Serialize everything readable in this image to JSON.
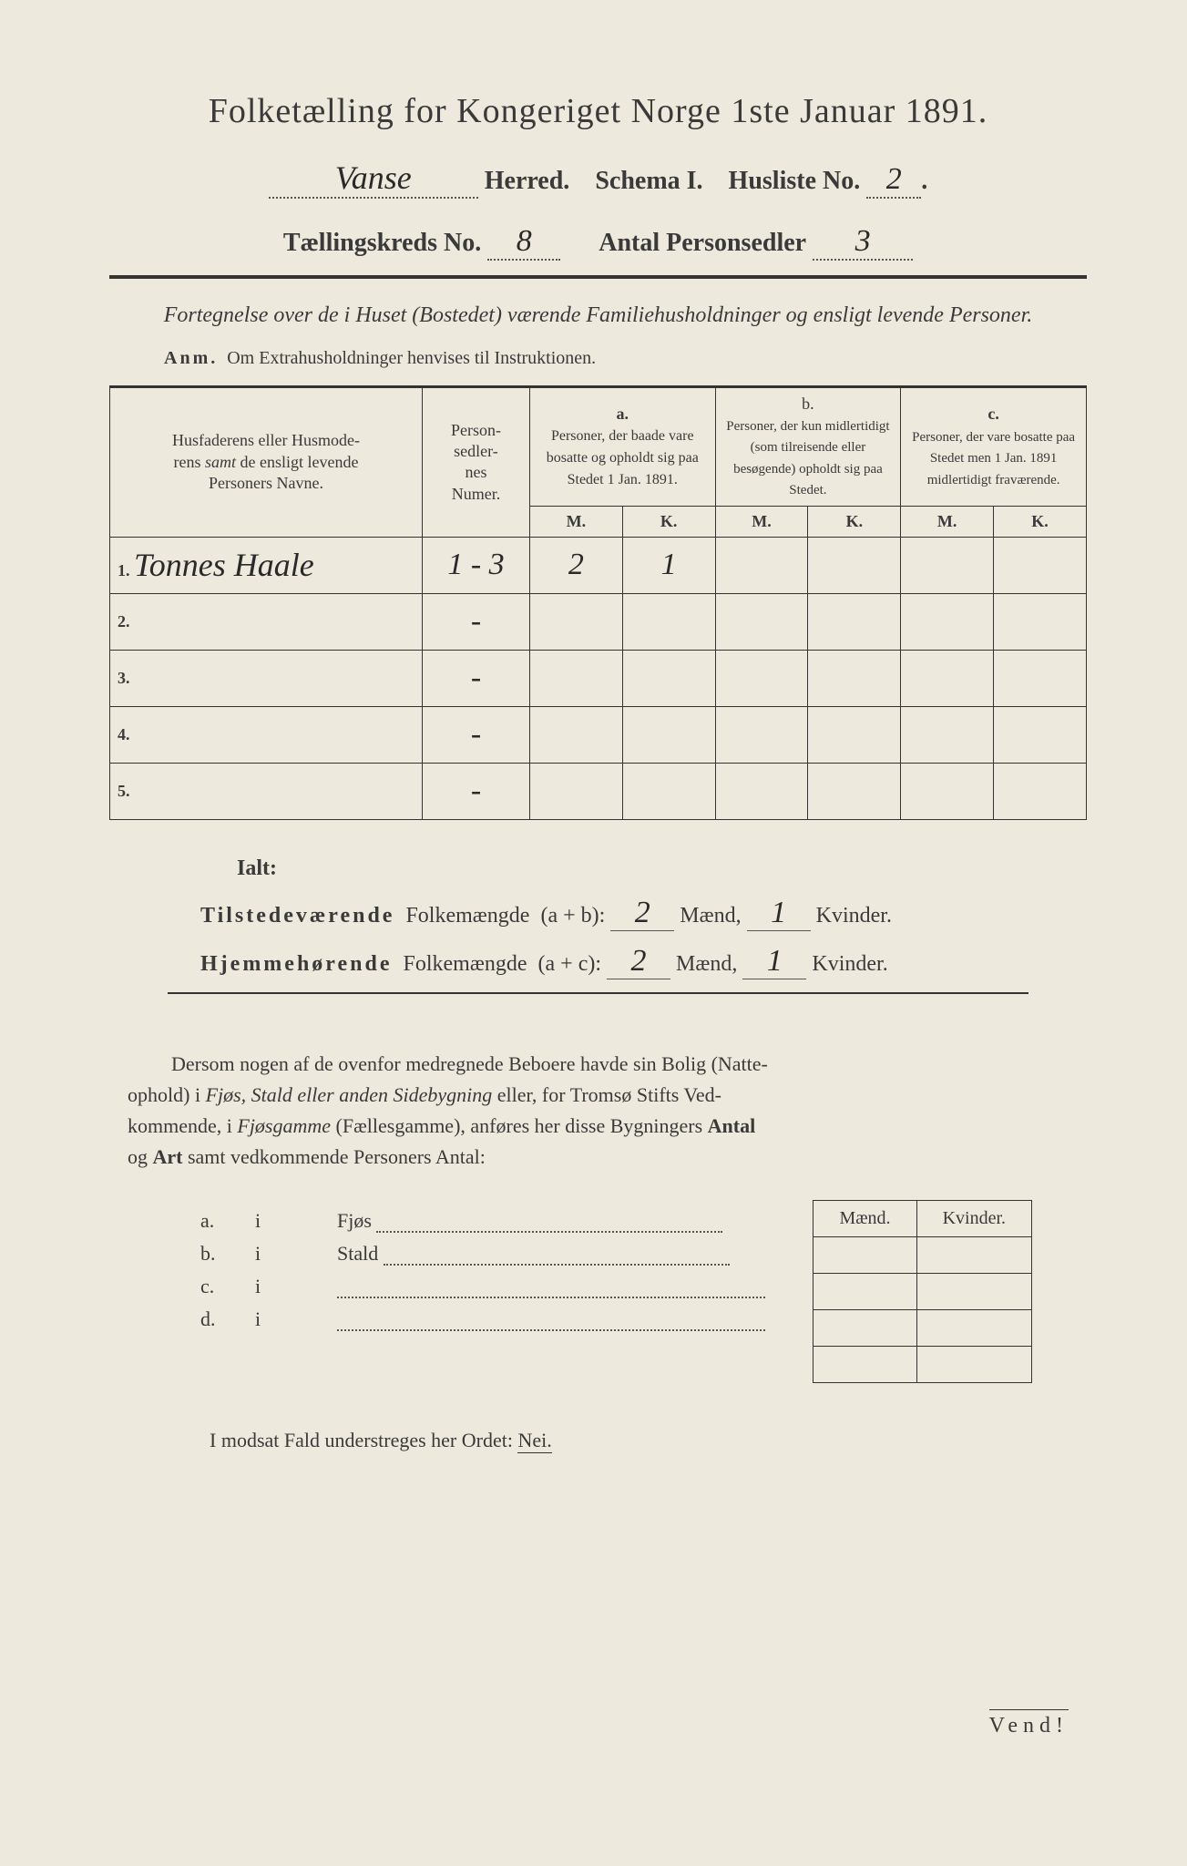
{
  "title": "Folketælling for Kongeriget Norge 1ste Januar 1891.",
  "line2": {
    "herred_value": "Vanse",
    "herred_label": "Herred.",
    "schema_label": "Schema I.",
    "husliste_label": "Husliste No.",
    "husliste_value": "2",
    "dot": "."
  },
  "line3": {
    "kreds_label": "Tællingskreds No.",
    "kreds_value": "8",
    "sedler_label": "Antal Personsedler",
    "sedler_value": "3"
  },
  "subtitle": "Fortegnelse over de i Huset (Bostedet) værende Familiehusholdninger og ensligt levende Personer.",
  "anm": {
    "label": "Anm.",
    "text": "Om Extrahusholdninger henvises til Instruktionen."
  },
  "headers": {
    "name": "Husfaderens eller Husmoderens samt de ensligt levende Personers Navne.",
    "numer": "Person-sedler-nes Numer.",
    "a_label": "a.",
    "a_text": "Personer, der baade vare bosatte og opholdt sig paa Stedet 1 Jan. 1891.",
    "b_label": "b.",
    "b_text": "Personer, der kun midlertidigt (som tilreisende eller besøgende) opholdt sig paa Stedet.",
    "c_label": "c.",
    "c_text": "Personer, der vare bosatte paa Stedet men 1 Jan. 1891 midlertidigt fraværende.",
    "m": "M.",
    "k": "K."
  },
  "rows": [
    {
      "n": "1.",
      "name": "Tonnes Haale",
      "numer": "1 - 3",
      "a_m": "2",
      "a_k": "1",
      "b_m": "",
      "b_k": "",
      "c_m": "",
      "c_k": ""
    },
    {
      "n": "2.",
      "name": "",
      "numer": "-",
      "a_m": "",
      "a_k": "",
      "b_m": "",
      "b_k": "",
      "c_m": "",
      "c_k": ""
    },
    {
      "n": "3.",
      "name": "",
      "numer": "-",
      "a_m": "",
      "a_k": "",
      "b_m": "",
      "b_k": "",
      "c_m": "",
      "c_k": ""
    },
    {
      "n": "4.",
      "name": "",
      "numer": "-",
      "a_m": "",
      "a_k": "",
      "b_m": "",
      "b_k": "",
      "c_m": "",
      "c_k": ""
    },
    {
      "n": "5.",
      "name": "",
      "numer": "-",
      "a_m": "",
      "a_k": "",
      "b_m": "",
      "b_k": "",
      "c_m": "",
      "c_k": ""
    }
  ],
  "summary": {
    "ialt": "Ialt:",
    "tilstede_label": "Tilstedeværende",
    "folkem": "Folkemængde",
    "ab": "(a + b):",
    "ac": "(a + c):",
    "hjemme_label": "Hjemmehørende",
    "maend": "Mænd,",
    "kvinder": "Kvinder.",
    "til_m": "2",
    "til_k": "1",
    "hj_m": "2",
    "hj_k": "1"
  },
  "para": "Dersom nogen af de ovenfor medregnede Beboere havde sin Bolig (Natteophold) i Fjøs, Stald eller anden Sidebygning eller, for Tromsø Stifts Vedkommende, i Fjøsgamme (Fællesgamme), anføres her disse Bygningers Antal og Art samt vedkommende Personers Antal:",
  "small_headers": {
    "m": "Mænd.",
    "k": "Kvinder."
  },
  "abcd": [
    {
      "l": "a.",
      "i": "i",
      "t": "Fjøs"
    },
    {
      "l": "b.",
      "i": "i",
      "t": "Stald"
    },
    {
      "l": "c.",
      "i": "i",
      "t": ""
    },
    {
      "l": "d.",
      "i": "i",
      "t": ""
    }
  ],
  "modsat": {
    "text": "I modsat Fald understreges her Ordet:",
    "nei": "Nei."
  },
  "vend": "Vend!",
  "colors": {
    "paper": "#ede9dc",
    "ink": "#3a3a3a",
    "handwriting": "#2a2a2a",
    "rule": "#333333"
  }
}
